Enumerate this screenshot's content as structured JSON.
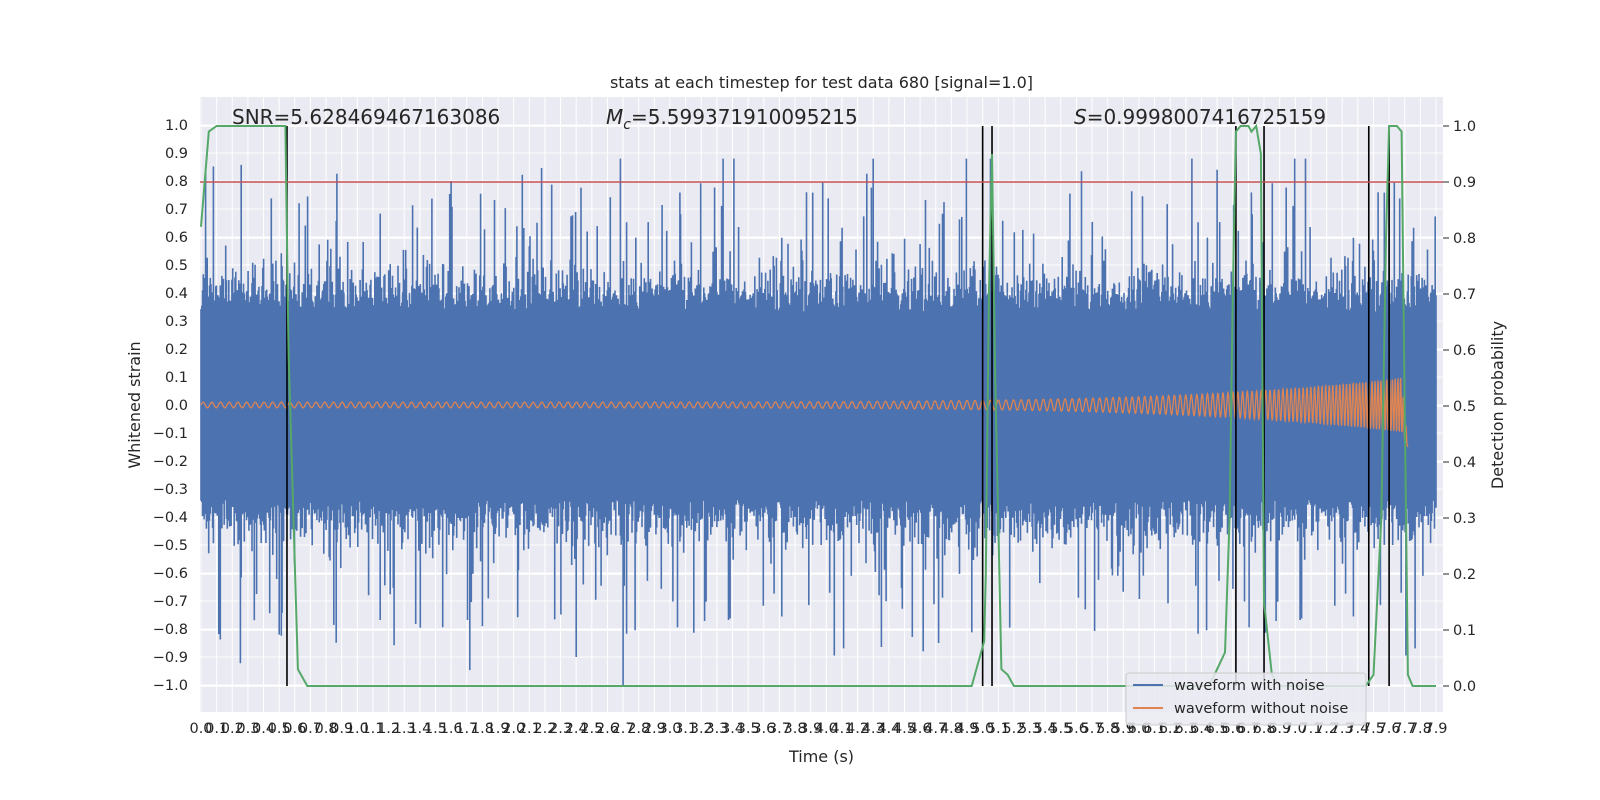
{
  "chart_data": {
    "type": "line",
    "title": "stats at each timestep for test data 680 [signal=1.0]",
    "xlabel": "Time (s)",
    "ylabel_left": "Whitened strain",
    "ylabel_right": "Detection probability",
    "xlim": [
      0.0,
      7.9
    ],
    "ylim_left": [
      -1.1,
      1.1
    ],
    "ylim_right": [
      -0.05,
      1.05
    ],
    "x_ticks": [
      "0.0",
      "0.1",
      "0.2",
      "0.3",
      "0.4",
      "0.5",
      "0.6",
      "0.7",
      "0.8",
      "0.9",
      "1.0",
      "1.1",
      "1.2",
      "1.3",
      "1.4",
      "1.5",
      "1.6",
      "1.7",
      "1.8",
      "1.9",
      "2.0",
      "2.1",
      "2.2",
      "2.3",
      "2.4",
      "2.5",
      "2.6",
      "2.7",
      "2.8",
      "2.9",
      "3.0",
      "3.1",
      "3.2",
      "3.3",
      "3.4",
      "3.5",
      "3.6",
      "3.7",
      "3.8",
      "3.9",
      "4.0",
      "4.1",
      "4.2",
      "4.3",
      "4.4",
      "4.5",
      "4.6",
      "4.7",
      "4.8",
      "4.9",
      "5.0",
      "5.1",
      "5.2",
      "5.3",
      "5.4",
      "5.5",
      "5.6",
      "5.7",
      "5.8",
      "5.9",
      "6.0",
      "6.1",
      "6.2",
      "6.3",
      "6.4",
      "6.5",
      "6.6",
      "6.7",
      "6.8",
      "6.9",
      "7.0",
      "7.1",
      "7.2",
      "7.3",
      "7.4",
      "7.5",
      "7.6",
      "7.7",
      "7.8",
      "7.9"
    ],
    "y_ticks_left": [
      "−1.0",
      "−0.9",
      "−0.8",
      "−0.7",
      "−0.6",
      "−0.5",
      "−0.4",
      "−0.3",
      "−0.2",
      "−0.1",
      "0.0",
      "0.1",
      "0.2",
      "0.3",
      "0.4",
      "0.5",
      "0.6",
      "0.7",
      "0.8",
      "0.9",
      "1.0"
    ],
    "y_ticks_right": [
      "0.0",
      "0.1",
      "0.2",
      "0.3",
      "0.4",
      "0.5",
      "0.6",
      "0.7",
      "0.8",
      "0.9",
      "1.0"
    ],
    "annotations": {
      "snr": "SNR=5.628469467163086",
      "mc_symbol": "M",
      "mc_sub": "c",
      "mc_value": "=5.599371910095215",
      "s_symbol": "S",
      "s_value": "=0.9998007416725159"
    },
    "threshold": {
      "axis": "right",
      "value": 0.9,
      "color": "#c44e52"
    },
    "series": [
      {
        "name": "waveform with noise",
        "color": "#4c72b0",
        "kind": "noise",
        "typical_amplitude": 0.35,
        "max_value": 0.88,
        "min_value": -1.0
      },
      {
        "name": "waveform without noise",
        "color": "#dd8452",
        "kind": "chirp",
        "start_amplitude": 0.01,
        "end_amplitude": 0.1,
        "end_time": 7.72
      },
      {
        "name": "detection probability",
        "color": "#55a868",
        "axis": "right",
        "x": [
          0.0,
          0.05,
          0.1,
          0.5,
          0.54,
          0.56,
          0.62,
          0.68,
          0.8,
          2.0,
          3.0,
          4.0,
          4.93,
          4.98,
          5.01,
          5.02,
          5.04,
          5.06,
          5.08,
          5.12,
          5.16,
          5.2,
          5.3,
          6.0,
          6.45,
          6.5,
          6.55,
          6.58,
          6.6,
          6.62,
          6.65,
          6.68,
          6.7,
          6.72,
          6.75,
          6.78,
          6.8,
          6.85,
          6.9,
          7.0,
          7.3,
          7.45,
          7.5,
          7.55,
          7.58,
          7.6,
          7.62,
          7.65,
          7.68,
          7.7,
          7.72,
          7.75,
          7.8,
          7.9
        ],
        "y": [
          0.82,
          0.99,
          1.0,
          1.0,
          1.0,
          0.6,
          0.03,
          0.0,
          0.0,
          0.0,
          0.0,
          0.0,
          0.0,
          0.05,
          0.08,
          0.2,
          0.7,
          0.95,
          0.55,
          0.03,
          0.02,
          0.0,
          0.0,
          0.0,
          0.0,
          0.03,
          0.06,
          0.3,
          0.7,
          0.99,
          1.0,
          1.0,
          1.0,
          0.99,
          1.0,
          0.95,
          0.15,
          0.02,
          0.0,
          0.0,
          0.0,
          0.0,
          0.02,
          0.3,
          0.8,
          1.0,
          1.0,
          1.0,
          0.99,
          0.5,
          0.02,
          0.0,
          0.0,
          0.0
        ]
      }
    ],
    "vertical_markers": [
      0.55,
      5.0,
      5.06,
      6.62,
      6.8,
      7.47,
      7.6
    ],
    "legend": {
      "position": "lower right",
      "entries": [
        "waveform with noise",
        "waveform without noise"
      ]
    }
  }
}
